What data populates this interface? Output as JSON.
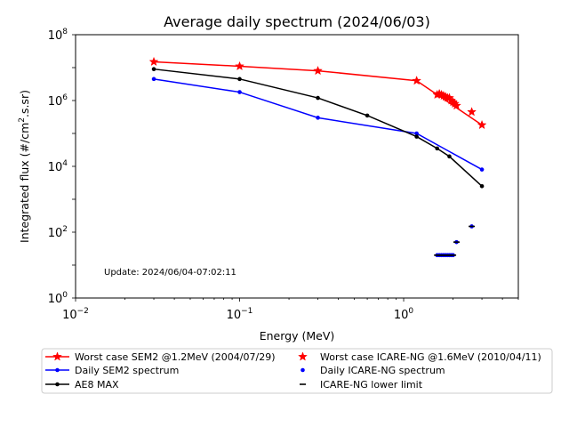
{
  "chart_data": {
    "type": "line",
    "title": "Average daily spectrum (2024/06/03)",
    "xlabel": "Energy (MeV)",
    "ylabel_prefix": "Integrated flux (#/cm",
    "ylabel_sup": "2",
    "ylabel_suffix": ".s.sr)",
    "xscale": "log",
    "yscale": "log",
    "xlim": [
      0.01,
      5.0
    ],
    "ylim": [
      1,
      100000000
    ],
    "x_ticks": [
      {
        "value": 0.01,
        "base": "10",
        "exp": "−2"
      },
      {
        "value": 0.1,
        "base": "10",
        "exp": "−1"
      },
      {
        "value": 1,
        "base": "10",
        "exp": "0"
      }
    ],
    "y_ticks": [
      {
        "value": 1,
        "base": "10",
        "exp": "0"
      },
      {
        "value": 100,
        "base": "10",
        "exp": "2"
      },
      {
        "value": 10000,
        "base": "10",
        "exp": "4"
      },
      {
        "value": 1000000,
        "base": "10",
        "exp": "6"
      },
      {
        "value": 100000000,
        "base": "10",
        "exp": "8"
      }
    ],
    "grid": false,
    "legend_position": "below plot",
    "annotation": "Update: 2024/06/04-07:02:11",
    "series": [
      {
        "name": "Worst case SEM2 @1.2MeV (2004/07/29)",
        "color": "#ff0000",
        "style": "line",
        "marker": "star",
        "x": [
          0.03,
          0.1,
          0.3,
          1.2,
          3.0
        ],
        "y": [
          15000000,
          11000000,
          8000000,
          4000000,
          180000
        ]
      },
      {
        "name": "Worst case ICARE-NG @1.6MeV (2010/04/11)",
        "color": "#ff0000",
        "style": "markers",
        "marker": "star",
        "x": [
          1.6,
          1.65,
          1.7,
          1.75,
          1.8,
          1.85,
          1.9,
          1.95,
          2.0,
          2.05,
          2.1,
          2.6
        ],
        "y": [
          1500000,
          1600000,
          1500000,
          1400000,
          1300000,
          1200000,
          1200000,
          1000000,
          900000,
          800000,
          700000,
          450000
        ]
      },
      {
        "name": "Daily SEM2 spectrum",
        "color": "#0000ff",
        "style": "line",
        "marker": "dot",
        "x": [
          0.03,
          0.1,
          0.3,
          1.2,
          3.0
        ],
        "y": [
          4500000,
          1800000,
          300000,
          100000,
          8000
        ]
      },
      {
        "name": "Daily ICARE-NG spectrum",
        "color": "#0000ff",
        "style": "markers",
        "marker": "dot",
        "x": [
          1.6,
          1.65,
          1.7,
          1.75,
          1.8,
          1.85,
          1.9,
          1.95,
          2.0,
          2.1,
          2.6
        ],
        "y": [
          20,
          20,
          20,
          20,
          20,
          20,
          20,
          20,
          20,
          50,
          150
        ]
      },
      {
        "name": "AE8 MAX",
        "color": "#000000",
        "style": "line",
        "marker": "dot",
        "x": [
          0.03,
          0.1,
          0.3,
          0.6,
          1.2,
          1.6,
          1.9,
          3.0
        ],
        "y": [
          9000000,
          4500000,
          1200000,
          350000,
          80000,
          35000,
          20000,
          2500
        ]
      },
      {
        "name": "ICARE-NG lower limit",
        "color": "#000000",
        "style": "dash-markers",
        "marker": "hline",
        "x": [
          1.6,
          1.65,
          1.7,
          1.75,
          1.8,
          1.85,
          1.9,
          1.95,
          2.0,
          2.1,
          2.6
        ],
        "y": [
          20,
          20,
          20,
          20,
          20,
          20,
          20,
          20,
          20,
          50,
          150
        ]
      }
    ]
  }
}
